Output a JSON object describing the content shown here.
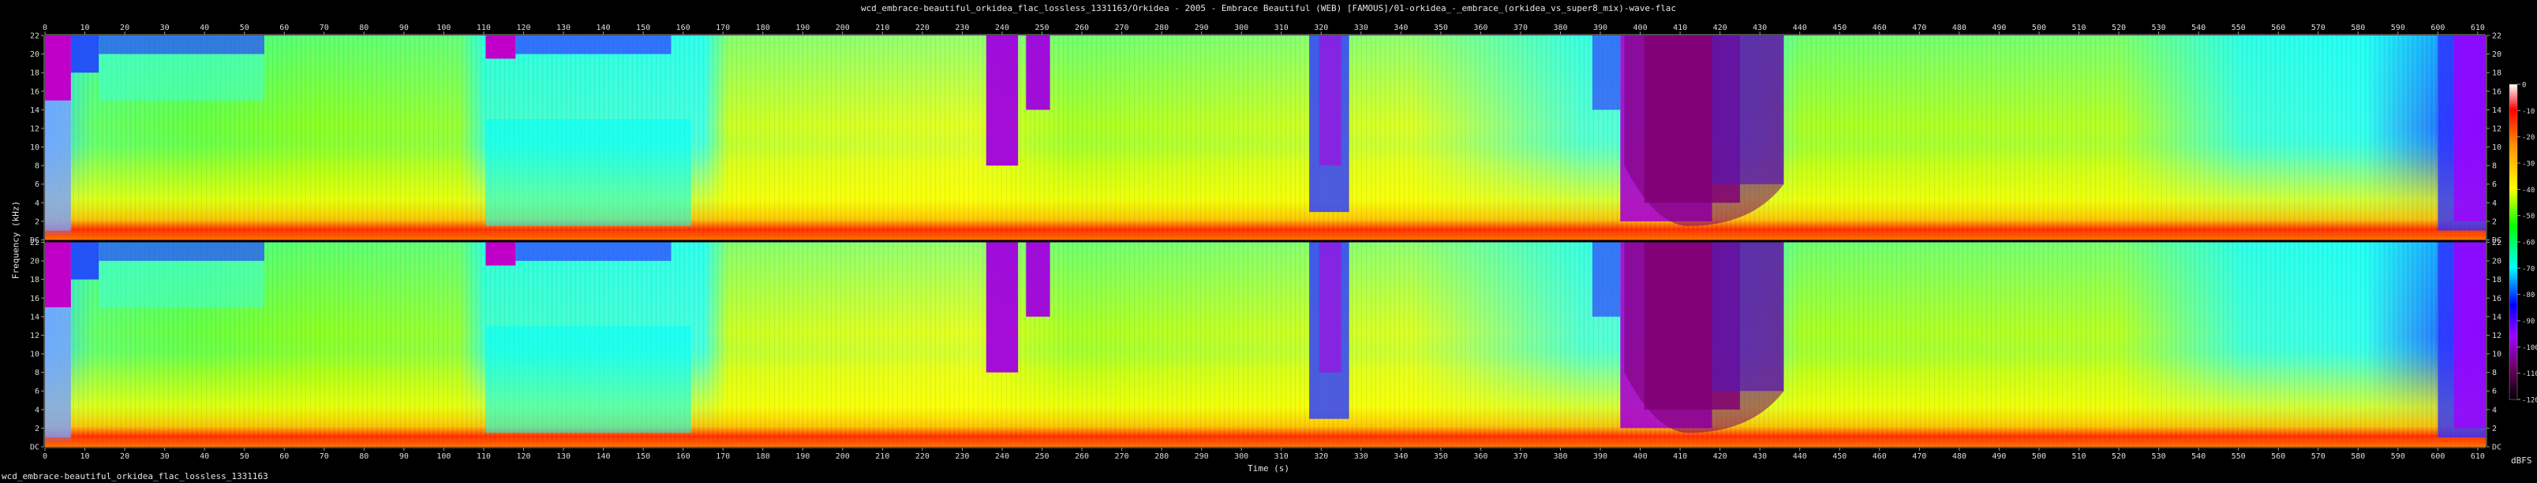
{
  "title": "wcd_embrace-beautiful_orkidea_flac_lossless_1331163/Orkidea - 2005 - Embrace  Beautiful (WEB) [FAMOUS]/01-orkidea_-_embrace_(orkidea_vs_super8_mix)-wave-flac",
  "footer": "wcd_embrace-beautiful_orkidea_flac_lossless_1331163",
  "colors": {
    "background": "#000000",
    "axis": "#9a9a9a",
    "scale": [
      "#ffffff",
      "#ff0000",
      "#ff9600",
      "#ffff00",
      "#00ff00",
      "#00ffff",
      "#0000ff",
      "#a000ff",
      "#6a0060",
      "#000000"
    ]
  },
  "chart_data": {
    "type": "heatmap",
    "title": "wcd_embrace-beautiful_orkidea_flac_lossless_1331163/Orkidea - 2005 - Embrace  Beautiful (WEB) [FAMOUS]/01-orkidea_-_embrace_(orkidea_vs_super8_mix)-wave-flac",
    "xlabel": "Time (s)",
    "ylabel": "Frequency (kHz)",
    "xlim": [
      0,
      612
    ],
    "x_ticks": [
      0,
      10,
      20,
      30,
      40,
      50,
      60,
      70,
      80,
      90,
      100,
      110,
      120,
      130,
      140,
      150,
      160,
      170,
      180,
      190,
      200,
      210,
      220,
      230,
      240,
      250,
      260,
      270,
      280,
      290,
      300,
      310,
      320,
      330,
      340,
      350,
      360,
      370,
      380,
      390,
      400,
      410,
      420,
      430,
      440,
      450,
      460,
      470,
      480,
      490,
      500,
      510,
      520,
      530,
      540,
      550,
      560,
      570,
      580,
      590,
      600,
      610
    ],
    "y_ticks": [
      "DC",
      "2",
      "4",
      "6",
      "8",
      "10",
      "12",
      "14",
      "16",
      "18",
      "20",
      "22"
    ],
    "ylim": [
      0,
      22
    ],
    "channels": 2,
    "colorbar": {
      "label": "dBFS",
      "ticks": [
        0,
        -10,
        -20,
        -30,
        -40,
        -50,
        -60,
        -70,
        -80,
        -90,
        -100,
        -110,
        -120
      ],
      "range": [
        -120,
        0
      ]
    }
  }
}
